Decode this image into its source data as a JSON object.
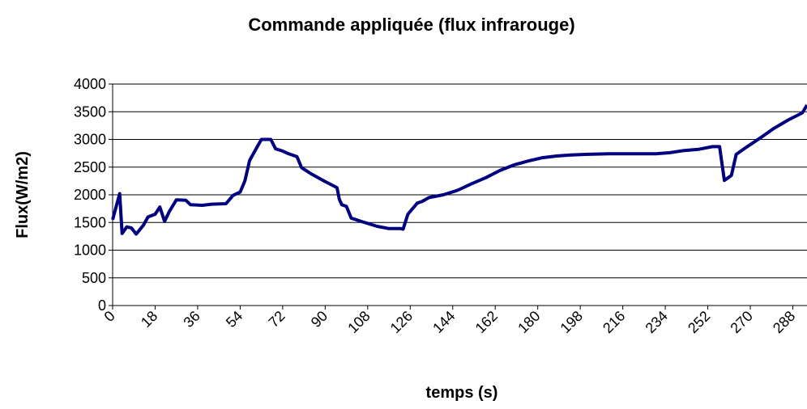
{
  "chart_data": {
    "type": "line",
    "title": "Commande appliquée (flux infrarouge)",
    "xlabel": "temps (s)",
    "ylabel": "Flux(W/m2)",
    "x": [
      0,
      3,
      4,
      6,
      8,
      10,
      13,
      15,
      18,
      20,
      22,
      24,
      27,
      31,
      33,
      38,
      42,
      48,
      51,
      54,
      56,
      58,
      61,
      63,
      67,
      69,
      72,
      74,
      78,
      80,
      84,
      90,
      95,
      96,
      97,
      99,
      101,
      106,
      112,
      117,
      122,
      123,
      125,
      129,
      131,
      134,
      140,
      146,
      152,
      158,
      164,
      170,
      176,
      182,
      188,
      194,
      200,
      210,
      220,
      230,
      236,
      242,
      248,
      254,
      257,
      259,
      262,
      264,
      268,
      274,
      280,
      286,
      292,
      294
    ],
    "series": [
      {
        "name": "Flux",
        "color": "#000080",
        "values": [
          1550,
          2020,
          1300,
          1420,
          1400,
          1290,
          1450,
          1600,
          1650,
          1780,
          1520,
          1700,
          1910,
          1900,
          1820,
          1810,
          1830,
          1840,
          1990,
          2050,
          2250,
          2620,
          2850,
          3000,
          3000,
          2830,
          2790,
          2750,
          2690,
          2490,
          2380,
          2240,
          2130,
          1920,
          1820,
          1790,
          1580,
          1510,
          1430,
          1390,
          1390,
          1380,
          1650,
          1850,
          1880,
          1950,
          2000,
          2080,
          2200,
          2310,
          2440,
          2540,
          2610,
          2670,
          2700,
          2720,
          2730,
          2740,
          2740,
          2740,
          2760,
          2800,
          2820,
          2870,
          2870,
          2260,
          2350,
          2730,
          2850,
          3020,
          3200,
          3350,
          3480,
          3620
        ]
      }
    ],
    "xlim": [
      0,
      294
    ],
    "xticks": [
      0,
      18,
      36,
      54,
      72,
      90,
      108,
      126,
      144,
      162,
      180,
      198,
      216,
      234,
      252,
      270,
      288
    ],
    "ylim": [
      0,
      4000
    ],
    "yticks": [
      0,
      500,
      1000,
      1500,
      2000,
      2500,
      3000,
      3500,
      4000
    ],
    "grid": true
  }
}
